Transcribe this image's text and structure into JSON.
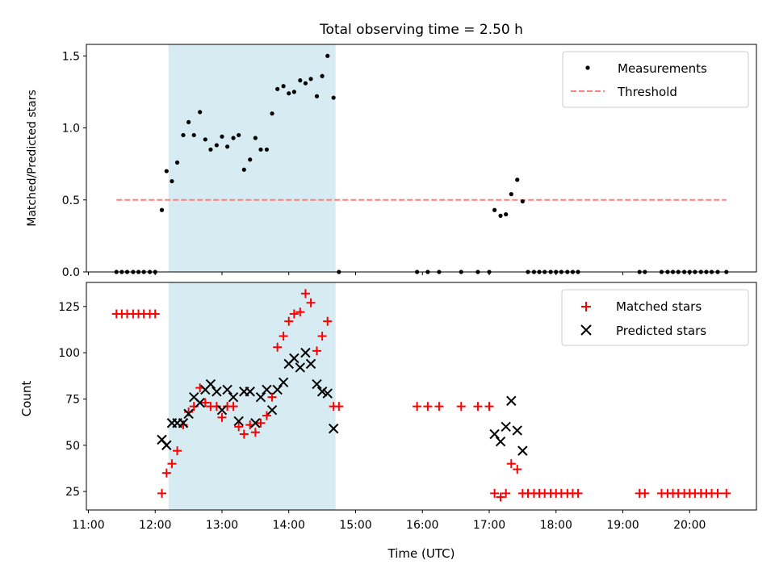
{
  "chart_data": [
    {
      "type": "scatter",
      "title": "Total observing time = 2.50 h",
      "xlabel": "",
      "ylabel": "Matched/Predicted stars",
      "x_unit": "hours UTC",
      "xlim": [
        10.97,
        21.0
      ],
      "ylim": [
        0,
        1.58
      ],
      "yticks": [
        "0.0",
        "0.5",
        "1.0",
        "1.5"
      ],
      "ytick_values": [
        0,
        0.5,
        1.0,
        1.5
      ],
      "shaded_interval": [
        12.2,
        14.7
      ],
      "shade_color": "#add8e6",
      "legend_position": "upper right",
      "series": [
        {
          "name": "Measurements",
          "marker": "dot",
          "color": "#000000",
          "x": [
            11.42,
            11.5,
            11.58,
            11.67,
            11.75,
            11.83,
            11.92,
            12.0,
            12.1,
            12.17,
            12.25,
            12.33,
            12.42,
            12.5,
            12.58,
            12.67,
            12.75,
            12.83,
            12.92,
            13.0,
            13.08,
            13.17,
            13.25,
            13.33,
            13.42,
            13.5,
            13.58,
            13.67,
            13.75,
            13.83,
            13.92,
            14.0,
            14.08,
            14.17,
            14.25,
            14.33,
            14.42,
            14.5,
            14.58,
            14.67,
            14.75,
            15.92,
            16.08,
            16.25,
            16.58,
            16.83,
            17.0,
            17.08,
            17.17,
            17.25,
            17.33,
            17.42,
            17.5,
            17.58,
            17.67,
            17.75,
            17.83,
            17.92,
            18.0,
            18.08,
            18.17,
            18.25,
            18.33,
            19.25,
            19.33,
            19.58,
            19.67,
            19.75,
            19.83,
            19.92,
            20.0,
            20.08,
            20.17,
            20.25,
            20.33,
            20.42,
            20.55
          ],
          "y": [
            0,
            0,
            0,
            0,
            0,
            0,
            0,
            0,
            0.43,
            0.7,
            0.63,
            0.76,
            0.95,
            1.04,
            0.95,
            1.11,
            0.92,
            0.85,
            0.88,
            0.94,
            0.87,
            0.93,
            0.95,
            0.71,
            0.78,
            0.93,
            0.85,
            0.85,
            1.1,
            1.27,
            1.29,
            1.24,
            1.25,
            1.33,
            1.31,
            1.34,
            1.22,
            1.36,
            1.5,
            1.21,
            0,
            0,
            0,
            0,
            0,
            0,
            0,
            0.43,
            0.39,
            0.4,
            0.54,
            0.64,
            0.49,
            0,
            0,
            0,
            0,
            0,
            0,
            0,
            0,
            0,
            0,
            0,
            0,
            0,
            0,
            0,
            0,
            0,
            0,
            0,
            0,
            0,
            0,
            0,
            0
          ]
        },
        {
          "name": "Threshold",
          "marker": "dashed-line",
          "color": "#ff7f7f",
          "x": [
            11.42,
            20.55
          ],
          "y": [
            0.5,
            0.5
          ]
        }
      ]
    },
    {
      "type": "scatter",
      "title": "",
      "xlabel": "Time (UTC)",
      "ylabel": "Count",
      "x_unit": "hours UTC",
      "xlim": [
        10.97,
        21.0
      ],
      "ylim": [
        15,
        138
      ],
      "xticks": [
        "11:00",
        "12:00",
        "13:00",
        "14:00",
        "15:00",
        "16:00",
        "17:00",
        "18:00",
        "19:00",
        "20:00"
      ],
      "xtick_values": [
        11,
        12,
        13,
        14,
        15,
        16,
        17,
        18,
        19,
        20
      ],
      "yticks": [
        "25",
        "50",
        "75",
        "100",
        "125"
      ],
      "ytick_values": [
        25,
        50,
        75,
        100,
        125
      ],
      "shaded_interval": [
        12.2,
        14.7
      ],
      "shade_color": "#add8e6",
      "legend_position": "upper right",
      "series": [
        {
          "name": "Matched stars",
          "marker": "plus",
          "color": "#ff0000",
          "x": [
            11.42,
            11.5,
            11.58,
            11.67,
            11.75,
            11.83,
            11.92,
            12.0,
            12.1,
            12.17,
            12.25,
            12.33,
            12.42,
            12.5,
            12.58,
            12.67,
            12.75,
            12.83,
            12.92,
            13.0,
            13.08,
            13.17,
            13.25,
            13.33,
            13.42,
            13.5,
            13.58,
            13.67,
            13.75,
            13.83,
            13.92,
            14.0,
            14.08,
            14.17,
            14.25,
            14.33,
            14.42,
            14.5,
            14.58,
            14.67,
            14.75,
            15.92,
            16.08,
            16.25,
            16.58,
            16.83,
            17.0,
            17.08,
            17.17,
            17.25,
            17.33,
            17.42,
            17.5,
            17.58,
            17.67,
            17.75,
            17.83,
            17.92,
            18.0,
            18.08,
            18.17,
            18.25,
            18.33,
            19.25,
            19.33,
            19.58,
            19.67,
            19.75,
            19.83,
            19.92,
            20.0,
            20.08,
            20.17,
            20.25,
            20.33,
            20.42,
            20.55
          ],
          "y": [
            121,
            121,
            121,
            121,
            121,
            121,
            121,
            121,
            24,
            35,
            40,
            47,
            61,
            68,
            71,
            81,
            73,
            71,
            71,
            65,
            71,
            71,
            60,
            56,
            61,
            57,
            62,
            66,
            76,
            103,
            109,
            117,
            121,
            122,
            132,
            127,
            101,
            109,
            117,
            71,
            71,
            71,
            71,
            71,
            71,
            71,
            71,
            24,
            22,
            24,
            40,
            37,
            24,
            24,
            24,
            24,
            24,
            24,
            24,
            24,
            24,
            24,
            24,
            24,
            24,
            24,
            24,
            24,
            24,
            24,
            24,
            24,
            24,
            24,
            24,
            24,
            24
          ]
        },
        {
          "name": "Predicted stars",
          "marker": "x",
          "color": "#000000",
          "x": [
            12.1,
            12.17,
            12.25,
            12.33,
            12.42,
            12.5,
            12.58,
            12.67,
            12.75,
            12.83,
            12.92,
            13.0,
            13.08,
            13.17,
            13.25,
            13.33,
            13.42,
            13.5,
            13.58,
            13.67,
            13.75,
            13.83,
            13.92,
            14.0,
            14.08,
            14.17,
            14.25,
            14.33,
            14.42,
            14.5,
            14.58,
            14.67,
            17.08,
            17.17,
            17.25,
            17.33,
            17.42,
            17.5
          ],
          "y": [
            53,
            50,
            62,
            62,
            62,
            67,
            76,
            73,
            80,
            83,
            79,
            69,
            80,
            76,
            63,
            79,
            79,
            62,
            76,
            80,
            69,
            80,
            84,
            94,
            97,
            92,
            100,
            94,
            83,
            79,
            78,
            59,
            56,
            52,
            60,
            74,
            58,
            47
          ]
        }
      ]
    }
  ]
}
